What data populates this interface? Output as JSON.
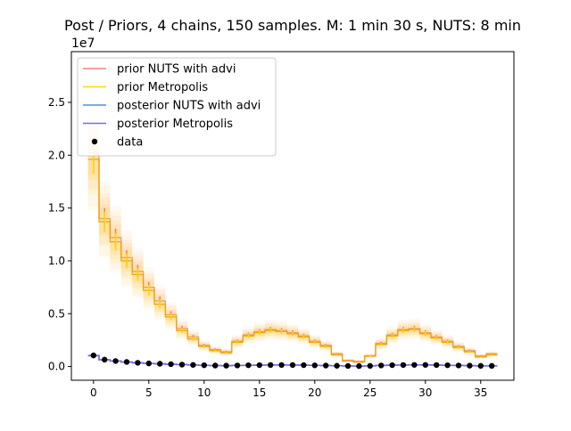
{
  "chart_data": {
    "type": "line",
    "title": "Post / Priors, 4 chains, 150 samples. M: 1 min 30 s, NUTS: 8 min",
    "xlabel": "",
    "ylabel": "",
    "y_offset_label": "1e7",
    "xlim": [
      -2,
      38
    ],
    "ylim": [
      -0.13,
      2.98
    ],
    "x_ticks": [
      0,
      5,
      10,
      15,
      20,
      25,
      30,
      35
    ],
    "x_tick_labels": [
      "0",
      "5",
      "10",
      "15",
      "20",
      "25",
      "30",
      "35"
    ],
    "y_ticks": [
      0,
      0.5,
      1.0,
      1.5,
      2.0,
      2.5
    ],
    "y_tick_labels": [
      "0.0",
      "0.5",
      "1.0",
      "1.5",
      "2.0",
      "2.5"
    ],
    "grid": false,
    "legend_position": "top-left",
    "x": [
      0,
      1,
      2,
      3,
      4,
      5,
      6,
      7,
      8,
      9,
      10,
      11,
      12,
      13,
      14,
      15,
      16,
      17,
      18,
      19,
      20,
      21,
      22,
      23,
      24,
      25,
      26,
      27,
      28,
      29,
      30,
      31,
      32,
      33,
      34,
      35,
      36
    ],
    "series": [
      {
        "name": "prior NUTS with advi",
        "color": "#f08080",
        "style": "step-band",
        "values": [
          2.02,
          1.4,
          1.22,
          1.03,
          0.9,
          0.75,
          0.62,
          0.49,
          0.36,
          0.28,
          0.2,
          0.16,
          0.14,
          0.24,
          0.3,
          0.33,
          0.35,
          0.34,
          0.32,
          0.29,
          0.24,
          0.2,
          0.12,
          0.06,
          0.05,
          0.1,
          0.22,
          0.3,
          0.35,
          0.36,
          0.32,
          0.28,
          0.24,
          0.19,
          0.15,
          0.1,
          0.12
        ]
      },
      {
        "name": "prior Metropolis",
        "color": "#ffd700",
        "style": "step-band",
        "values": [
          1.96,
          1.37,
          1.18,
          1.0,
          0.87,
          0.72,
          0.59,
          0.47,
          0.34,
          0.26,
          0.19,
          0.15,
          0.13,
          0.23,
          0.29,
          0.32,
          0.34,
          0.33,
          0.31,
          0.28,
          0.23,
          0.19,
          0.11,
          0.05,
          0.04,
          0.1,
          0.21,
          0.29,
          0.34,
          0.35,
          0.31,
          0.27,
          0.23,
          0.18,
          0.14,
          0.09,
          0.11
        ]
      },
      {
        "name": "posterior NUTS with advi",
        "color": "#4a90e2",
        "style": "step",
        "values": [
          0.105,
          0.065,
          0.052,
          0.043,
          0.035,
          0.029,
          0.026,
          0.022,
          0.018,
          0.015,
          0.012,
          0.009,
          0.008,
          0.01,
          0.012,
          0.013,
          0.014,
          0.014,
          0.014,
          0.013,
          0.011,
          0.009,
          0.007,
          0.005,
          0.004,
          0.006,
          0.01,
          0.013,
          0.014,
          0.015,
          0.015,
          0.014,
          0.012,
          0.01,
          0.008,
          0.006,
          0.006
        ]
      },
      {
        "name": "posterior Metropolis",
        "color": "#7b68ee",
        "style": "step",
        "values": [
          0.102,
          0.063,
          0.051,
          0.042,
          0.034,
          0.029,
          0.025,
          0.021,
          0.018,
          0.014,
          0.011,
          0.009,
          0.008,
          0.01,
          0.012,
          0.013,
          0.014,
          0.014,
          0.014,
          0.013,
          0.011,
          0.009,
          0.007,
          0.005,
          0.004,
          0.006,
          0.01,
          0.013,
          0.014,
          0.015,
          0.014,
          0.013,
          0.012,
          0.01,
          0.008,
          0.006,
          0.006
        ]
      },
      {
        "name": "data",
        "color": "#000000",
        "style": "points",
        "values": [
          0.105,
          0.065,
          0.052,
          0.043,
          0.035,
          0.029,
          0.026,
          0.022,
          0.018,
          0.015,
          0.012,
          0.009,
          0.008,
          0.01,
          0.012,
          0.013,
          0.014,
          0.014,
          0.014,
          0.013,
          0.011,
          0.009,
          0.007,
          0.005,
          0.004,
          0.006,
          0.01,
          0.013,
          0.014,
          0.015,
          0.015,
          0.014,
          0.012,
          0.01,
          0.008,
          0.006,
          0.006
        ]
      }
    ]
  }
}
